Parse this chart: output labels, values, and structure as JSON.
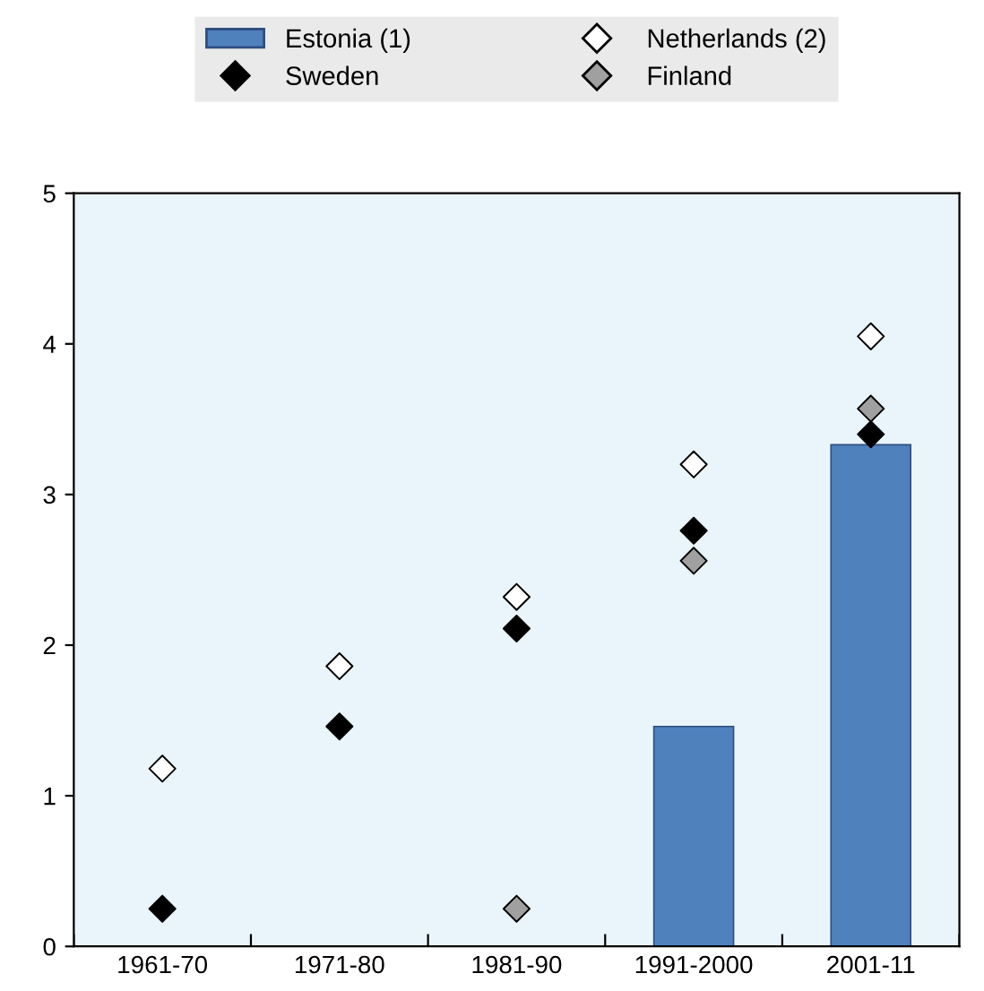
{
  "chart_data": {
    "type": "bar",
    "categories": [
      "1961-70",
      "1971-80",
      "1981-90",
      "1991-2000",
      "2001-11"
    ],
    "series": [
      {
        "name": "Estonia (1)",
        "color": "#4f81bd",
        "values": [
          null,
          null,
          null,
          1.46,
          3.33
        ]
      },
      {
        "name": "Netherlands (2)",
        "type": "scatter",
        "color": "#ffffff",
        "marker": "diamond",
        "values": [
          1.18,
          1.86,
          2.32,
          3.2,
          4.05
        ]
      },
      {
        "name": "Sweden",
        "type": "scatter",
        "color": "#000000",
        "marker": "diamond",
        "values": [
          0.25,
          1.46,
          2.11,
          2.76,
          3.4
        ]
      },
      {
        "name": "Finland",
        "type": "scatter",
        "color": "#a0a0a0",
        "marker": "diamond",
        "values": [
          null,
          null,
          0.25,
          2.56,
          3.57
        ]
      }
    ],
    "ylim": [
      0,
      5
    ],
    "yticks": [
      0,
      1,
      2,
      3,
      4,
      5
    ],
    "grid": false,
    "legend": "top"
  }
}
